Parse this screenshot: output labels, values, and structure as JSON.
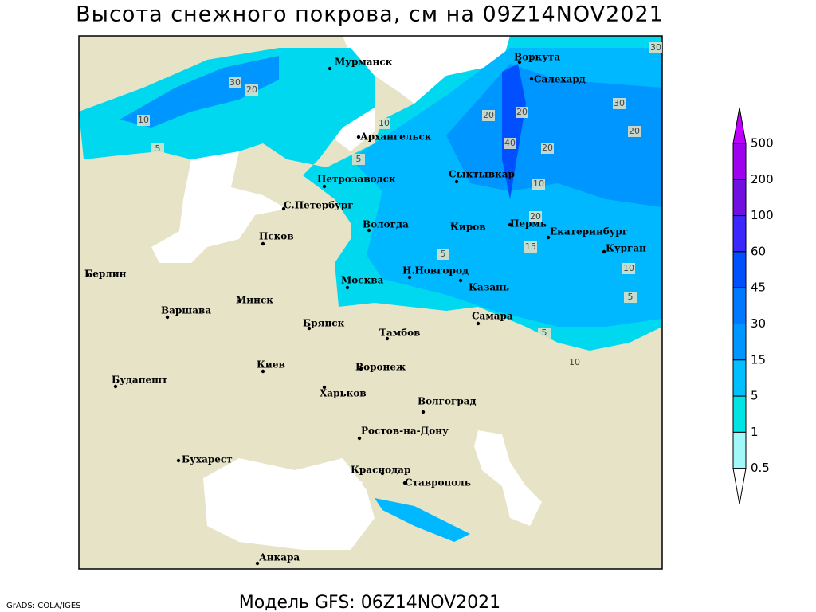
{
  "title": "Высота снежного покрова, см на 09Z14NOV2021",
  "subtitle": "Модель GFS: 06Z14NOV2021",
  "credit": "GrADS: COLA/IGES",
  "cities": [
    "Мурманск",
    "Воркута",
    "Салехард",
    "Архангельск",
    "Сыктывкар",
    "Петрозаводск",
    "С.Петербург",
    "Вологда",
    "Киров",
    "Пермь",
    "Екатеринбург",
    "Курган",
    "Псков",
    "Берлин",
    "Н.Новгород",
    "Казань",
    "Москва",
    "Минск",
    "Варшава",
    "Самара",
    "Брянск",
    "Тамбов",
    "Воронеж",
    "Киев",
    "Будапешт",
    "Харьков",
    "Волгоград",
    "Ростов-на-Дону",
    "Бухарест",
    "Краснодар",
    "Ставрополь",
    "Анкара"
  ],
  "contour_labels": [
    30,
    20,
    10,
    5,
    10,
    5,
    20,
    20,
    40,
    20,
    30,
    20,
    10,
    20,
    15,
    5,
    10,
    5,
    5,
    10,
    30
  ],
  "legend": {
    "levels": [
      500,
      200,
      100,
      60,
      45,
      30,
      15,
      5,
      1,
      0.5
    ],
    "colors": [
      "#c000ff",
      "#a000f0",
      "#7010e0",
      "#3c28ff",
      "#0050ff",
      "#0078ff",
      "#0096ff",
      "#00c0ff",
      "#00e4e4",
      "#a0f8f8",
      "#ffffff"
    ]
  }
}
